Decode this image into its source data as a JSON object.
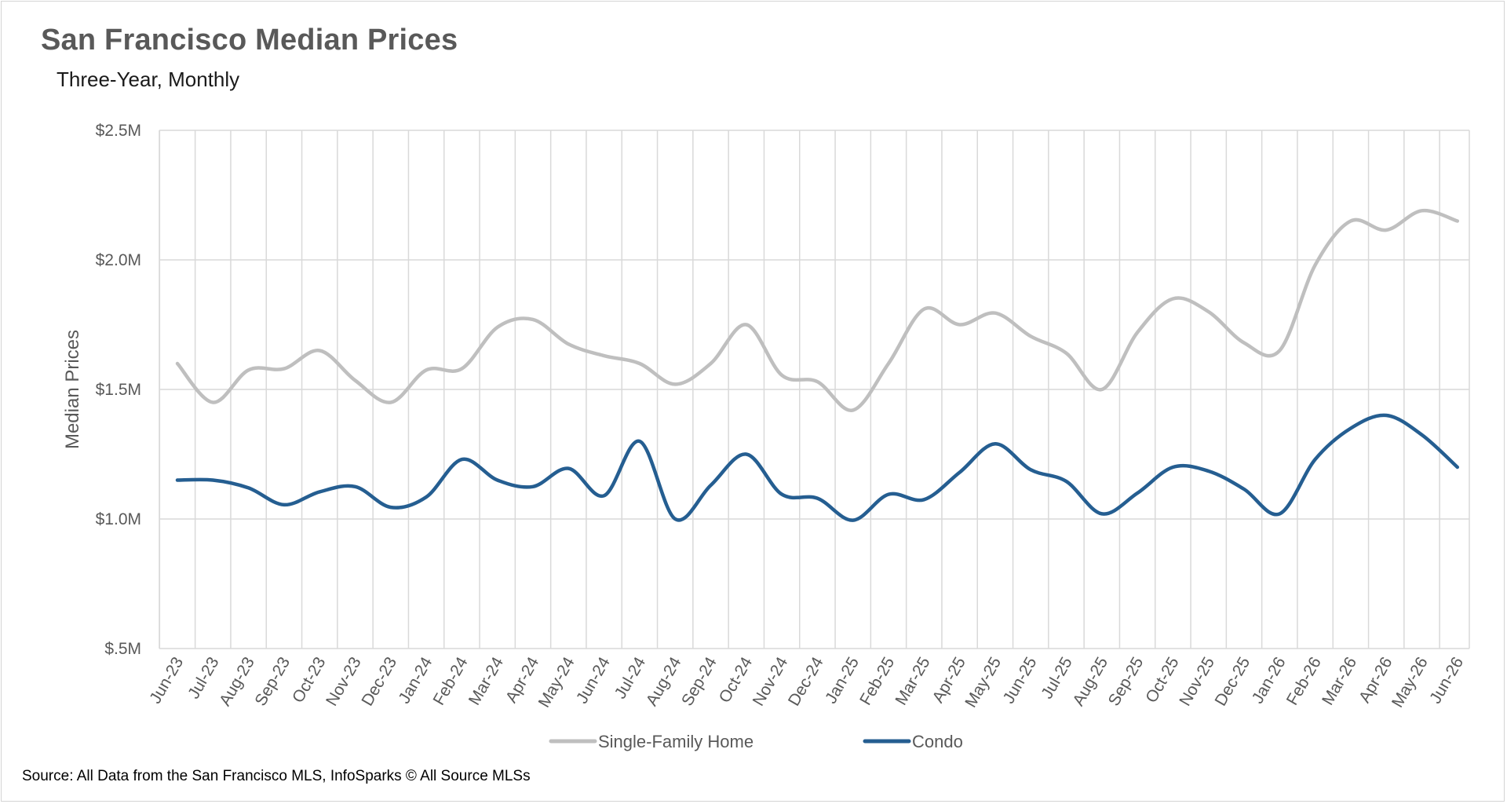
{
  "chart_data": {
    "type": "line",
    "title": "San Francisco Median Prices",
    "subtitle": "Three-Year, Monthly",
    "ylabel": "Median Prices",
    "xlabel": "",
    "ylim": [
      500000,
      2500000
    ],
    "y_ticks": [
      {
        "value": 2500000,
        "label": "$2.5M"
      },
      {
        "value": 2000000,
        "label": "$2.0M"
      },
      {
        "value": 1500000,
        "label": "$1.5M"
      },
      {
        "value": 1000000,
        "label": "$1.0M"
      },
      {
        "value": 500000,
        "label": "$.5M"
      }
    ],
    "categories": [
      "Jun-23",
      "Jul-23",
      "Aug-23",
      "Sep-23",
      "Oct-23",
      "Nov-23",
      "Dec-23",
      "Jan-24",
      "Feb-24",
      "Mar-24",
      "Apr-24",
      "May-24",
      "Jun-24",
      "Jul-24",
      "Aug-24",
      "Sep-24",
      "Oct-24",
      "Nov-24",
      "Dec-24",
      "Jan-25",
      "Feb-25",
      "Mar-25",
      "Apr-25",
      "May-25",
      "Jun-25",
      "Jul-25",
      "Aug-25",
      "Sep-25",
      "Oct-25",
      "Nov-25",
      "Dec-25",
      "Jan-26",
      "Feb-26",
      "Mar-26",
      "Apr-26",
      "May-26",
      "Jun-26"
    ],
    "series": [
      {
        "name": "Single-Family Home",
        "color": "#bfbfbf",
        "values": [
          1600000,
          1450000,
          1575000,
          1580000,
          1650000,
          1535000,
          1450000,
          1575000,
          1580000,
          1740000,
          1770000,
          1675000,
          1630000,
          1600000,
          1520000,
          1600000,
          1750000,
          1555000,
          1530000,
          1420000,
          1600000,
          1810000,
          1750000,
          1795000,
          1705000,
          1640000,
          1500000,
          1720000,
          1850000,
          1800000,
          1680000,
          1650000,
          1980000,
          2150000,
          2115000,
          2190000,
          2150000
        ]
      },
      {
        "name": "Condo",
        "color": "#255e91",
        "values": [
          1150000,
          1150000,
          1120000,
          1055000,
          1105000,
          1125000,
          1045000,
          1085000,
          1230000,
          1150000,
          1125000,
          1195000,
          1090000,
          1300000,
          1000000,
          1130000,
          1250000,
          1095000,
          1080000,
          995000,
          1095000,
          1075000,
          1180000,
          1290000,
          1190000,
          1145000,
          1020000,
          1100000,
          1200000,
          1185000,
          1115000,
          1020000,
          1230000,
          1350000,
          1400000,
          1325000,
          1200000
        ]
      }
    ],
    "grid": true,
    "legend": "bottom-center",
    "source": "Source: All Data from the San Francisco MLS, InfoSparks © All Source MLSs"
  }
}
